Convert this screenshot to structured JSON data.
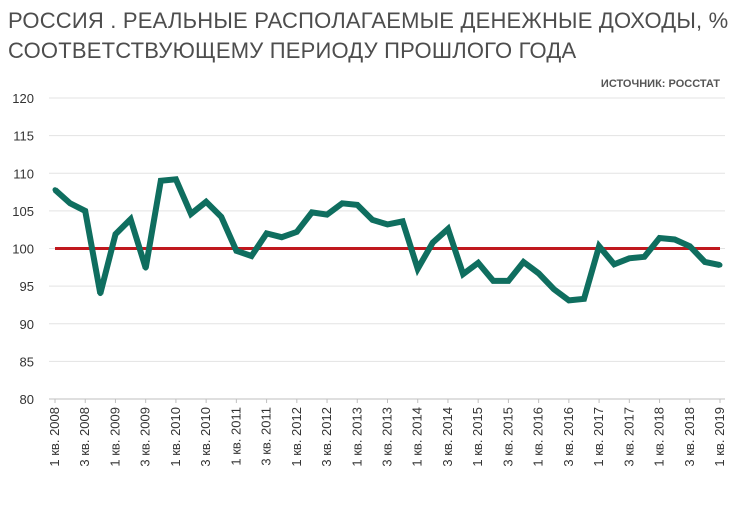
{
  "title": "РОССИЯ . РЕАЛЬНЫЕ РАСПОЛАГАЕМЫЕ ДЕНЕЖНЫЕ ДОХОДЫ, % СООТВЕТСТВУЮЩЕМУ ПЕРИОДУ ПРОШЛОГО ГОДА",
  "source": "ИСТОЧНИК: РОССТАТ",
  "colors": {
    "series": "#0f6e5f",
    "reference": "#c0181e",
    "grid": "#e3e3e3",
    "axis": "#bfbfbf"
  },
  "chart_data": {
    "type": "line",
    "title": "РОССИЯ . РЕАЛЬНЫЕ РАСПОЛАГАЕМЫЕ ДЕНЕЖНЫЕ ДОХОДЫ, % СООТВЕТСТВУЮЩЕМУ ПЕРИОДУ ПРОШЛОГО ГОДА",
    "xlabel": "",
    "ylabel": "",
    "ylim": [
      80,
      120
    ],
    "yticks": [
      80,
      85,
      90,
      95,
      100,
      105,
      110,
      115,
      120
    ],
    "grid": true,
    "legend": "none",
    "x": [
      "1 кв. 2008",
      "2 кв. 2008",
      "3 кв. 2008",
      "4 кв. 2008",
      "1 кв. 2009",
      "2 кв. 2009",
      "3 кв. 2009",
      "4 кв. 2009",
      "1 кв. 2010",
      "2 кв. 2010",
      "3 кв. 2010",
      "4 кв. 2010",
      "1 кв. 2011",
      "2 кв. 2011",
      "3 кв. 2011",
      "4 кв. 2011",
      "1 кв. 2012",
      "2 кв. 2012",
      "3 кв. 2012",
      "4 кв. 2012",
      "1 кв. 2013",
      "2 кв. 2013",
      "3 кв. 2013",
      "4 кв. 2013",
      "1 кв. 2014",
      "2 кв. 2014",
      "3 кв. 2014",
      "4 кв. 2014",
      "1 кв. 2015",
      "2 кв. 2015",
      "3 кв. 2015",
      "4 кв. 2015",
      "1 кв. 2016",
      "2 кв. 2016",
      "3 кв. 2016",
      "4 кв. 2016",
      "1 кв. 2017",
      "2 кв. 2017",
      "3 кв. 2017",
      "4 кв. 2017",
      "1 кв. 2018",
      "2 кв. 2018",
      "3 кв. 2018",
      "4 кв. 2018",
      "1 кв. 2019"
    ],
    "tick_labels": [
      "1 кв. 2008",
      "3 кв. 2008",
      "1 кв. 2009",
      "3 кв. 2009",
      "1 кв. 2010",
      "3 кв. 2010",
      "1 кв. 2011",
      "3 кв. 2011",
      "1 кв. 2012",
      "3 кв. 2012",
      "1 кв. 2013",
      "3 кв. 2013",
      "1 кв. 2014",
      "3 кв. 2014",
      "1 кв. 2015",
      "3 кв. 2015",
      "1 кв. 2016",
      "3 кв. 2016",
      "1 кв. 2017",
      "3 кв. 2017",
      "1 кв. 2018",
      "3 кв. 2018",
      "1 кв. 2019"
    ],
    "series": [
      {
        "values": [
          107.8,
          106.0,
          105.0,
          94.0,
          101.9,
          103.9,
          97.4,
          109.0,
          109.2,
          104.6,
          106.2,
          104.2,
          99.7,
          99.0,
          102.0,
          101.5,
          102.2,
          104.8,
          104.5,
          106.0,
          105.8,
          103.8,
          103.2,
          103.6,
          97.3,
          100.8,
          102.6,
          96.6,
          98.1,
          95.7,
          95.7,
          98.2,
          96.7,
          94.6,
          93.1,
          93.3,
          100.3,
          97.9,
          98.7,
          98.9,
          101.4,
          101.2,
          100.3,
          98.2,
          97.8
        ]
      }
    ],
    "reference_line": 100
  }
}
